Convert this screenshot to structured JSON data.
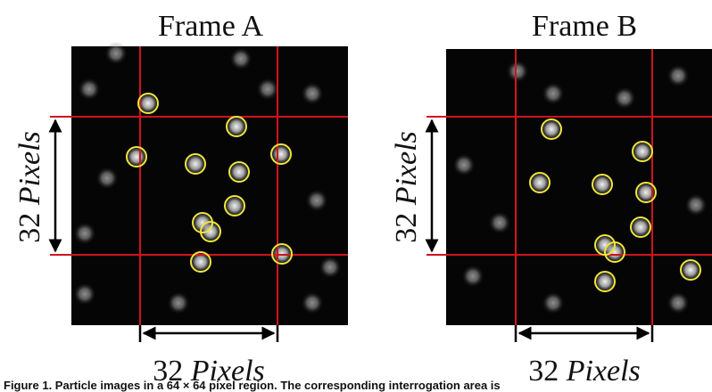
{
  "figure": {
    "frames": [
      {
        "title": "Frame A",
        "side_label": {
          "number": "32",
          "unit": "Pixels"
        },
        "bottom_label": {
          "number": "32",
          "unit": "Pixels"
        }
      },
      {
        "title": "Frame B",
        "side_label": {
          "number": "32",
          "unit": "Pixels"
        },
        "bottom_label": {
          "number": "32",
          "unit": "Pixels"
        }
      }
    ],
    "caption": "Figure 1. Particle images in a 64 × 64 pixel region. The corresponding interrogation area is"
  }
}
